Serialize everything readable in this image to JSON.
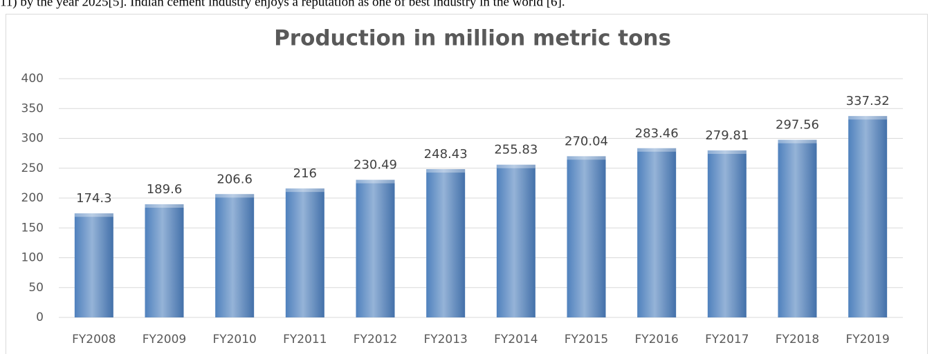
{
  "context_text": "11) by the year 2025[5]. Indian cement industry enjoys a reputation as one of best industry in the world [6].",
  "chart_data": {
    "type": "bar",
    "title": "Production in million metric tons",
    "categories": [
      "FY2008",
      "FY2009",
      "FY2010",
      "FY2011",
      "FY2012",
      "FY2013",
      "FY2014",
      "FY2015",
      "FY2016",
      "FY2017",
      "FY2018",
      "FY2019"
    ],
    "values": [
      174.3,
      189.6,
      206.6,
      216,
      230.49,
      248.43,
      255.83,
      270.04,
      283.46,
      279.81,
      297.56,
      337.32
    ],
    "color": "#4f81bd",
    "ylim": [
      0,
      400
    ],
    "yticks": [
      0,
      50,
      100,
      150,
      200,
      250,
      300,
      350,
      400
    ],
    "grid": true,
    "data_labels": true
  }
}
